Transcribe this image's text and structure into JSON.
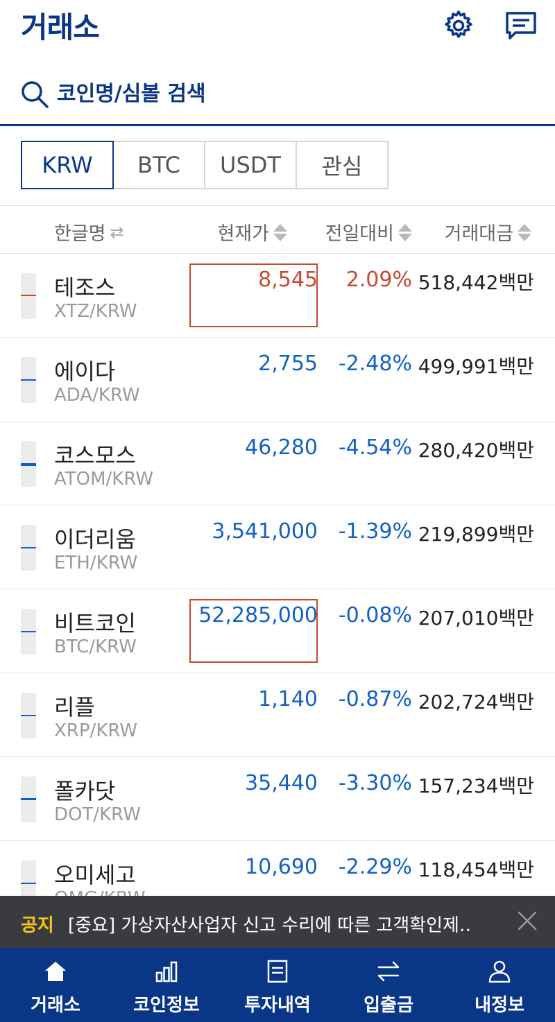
{
  "header": {
    "title": "거래소",
    "settings_icon": "gear-icon",
    "chat_icon": "chat-icon"
  },
  "search": {
    "placeholder": "코인명/심볼 검색"
  },
  "tabs": [
    {
      "label": "KRW",
      "active": true
    },
    {
      "label": "BTC",
      "active": false
    },
    {
      "label": "USDT",
      "active": false
    },
    {
      "label": "관심",
      "active": false
    }
  ],
  "columns": {
    "name": "한글명",
    "price": "현재가",
    "change": "전일대비",
    "volume": "거래대금"
  },
  "colors": {
    "brand": "#093687",
    "up": "#c84a31",
    "down": "#1261c4",
    "notice_label": "#f5c518"
  },
  "rows": [
    {
      "name": "테조스",
      "symbol": "XTZ/KRW",
      "price": "8,545",
      "change": "2.09%",
      "volume": "518,442백만",
      "direction": "up"
    },
    {
      "name": "에이다",
      "symbol": "ADA/KRW",
      "price": "2,755",
      "change": "-2.48%",
      "volume": "499,991백만",
      "direction": "down"
    },
    {
      "name": "코스모스",
      "symbol": "ATOM/KRW",
      "price": "46,280",
      "change": "-4.54%",
      "volume": "280,420백만",
      "direction": "down"
    },
    {
      "name": "이더리움",
      "symbol": "ETH/KRW",
      "price": "3,541,000",
      "change": "-1.39%",
      "volume": "219,899백만",
      "direction": "down"
    },
    {
      "name": "비트코인",
      "symbol": "BTC/KRW",
      "price": "52,285,000",
      "change": "-0.08%",
      "volume": "207,010백만",
      "direction": "down"
    },
    {
      "name": "리플",
      "symbol": "XRP/KRW",
      "price": "1,140",
      "change": "-0.87%",
      "volume": "202,724백만",
      "direction": "down"
    },
    {
      "name": "폴카닷",
      "symbol": "DOT/KRW",
      "price": "35,440",
      "change": "-3.30%",
      "volume": "157,234백만",
      "direction": "down"
    },
    {
      "name": "오미세고",
      "symbol": "OMG/KRW",
      "price": "10,690",
      "change": "-2.29%",
      "volume": "118,454백만",
      "direction": "down"
    }
  ],
  "notice": {
    "label": "공지",
    "text": "[중요] 가상자산사업자 신고 수리에 따른 고객확인제…"
  },
  "bottom_nav": [
    {
      "label": "거래소",
      "icon": "home-icon"
    },
    {
      "label": "코인정보",
      "icon": "chart-icon"
    },
    {
      "label": "투자내역",
      "icon": "document-icon"
    },
    {
      "label": "입출금",
      "icon": "transfer-icon"
    },
    {
      "label": "내정보",
      "icon": "user-icon"
    }
  ]
}
